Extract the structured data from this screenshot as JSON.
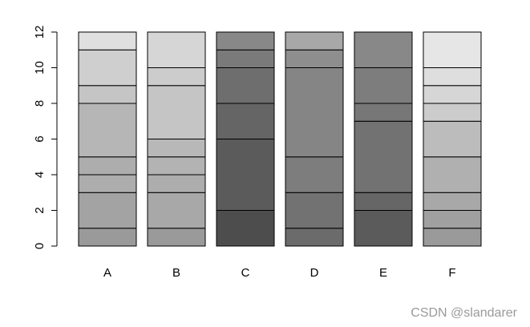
{
  "chart_data": {
    "type": "bar",
    "stacked": true,
    "categories": [
      "A",
      "B",
      "C",
      "D",
      "E",
      "F"
    ],
    "ylim": [
      0,
      12
    ],
    "yticks": [
      0,
      2,
      4,
      6,
      8,
      10,
      12
    ],
    "grid": false,
    "legend": "none",
    "title": "",
    "xlabel": "",
    "ylabel": "",
    "bars": [
      {
        "category": "A",
        "segments": [
          {
            "from": 0,
            "to": 1,
            "color": "#9a9a9a"
          },
          {
            "from": 1,
            "to": 3,
            "color": "#a3a3a3"
          },
          {
            "from": 3,
            "to": 4,
            "color": "#adadad"
          },
          {
            "from": 4,
            "to": 5,
            "color": "#adadad"
          },
          {
            "from": 5,
            "to": 8,
            "color": "#b6b6b6"
          },
          {
            "from": 8,
            "to": 9,
            "color": "#c5c5c5"
          },
          {
            "from": 9,
            "to": 11,
            "color": "#cfcfcf"
          },
          {
            "from": 11,
            "to": 12,
            "color": "#e0e0e0"
          }
        ]
      },
      {
        "category": "B",
        "segments": [
          {
            "from": 0,
            "to": 1,
            "color": "#9a9a9a"
          },
          {
            "from": 1,
            "to": 3,
            "color": "#a8a8a8"
          },
          {
            "from": 3,
            "to": 4,
            "color": "#adadad"
          },
          {
            "from": 4,
            "to": 5,
            "color": "#b3b3b3"
          },
          {
            "from": 5,
            "to": 6,
            "color": "#b8b8b8"
          },
          {
            "from": 6,
            "to": 9,
            "color": "#c5c5c5"
          },
          {
            "from": 9,
            "to": 10,
            "color": "#cccccc"
          },
          {
            "from": 10,
            "to": 12,
            "color": "#d6d6d6"
          }
        ]
      },
      {
        "category": "C",
        "segments": [
          {
            "from": 0,
            "to": 2,
            "color": "#4d4d4d"
          },
          {
            "from": 2,
            "to": 6,
            "color": "#5b5b5b"
          },
          {
            "from": 6,
            "to": 8,
            "color": "#656565"
          },
          {
            "from": 8,
            "to": 10,
            "color": "#6e6e6e"
          },
          {
            "from": 10,
            "to": 11,
            "color": "#7a7a7a"
          },
          {
            "from": 11,
            "to": 12,
            "color": "#888888"
          }
        ]
      },
      {
        "category": "D",
        "segments": [
          {
            "from": 0,
            "to": 1,
            "color": "#6b6b6b"
          },
          {
            "from": 1,
            "to": 3,
            "color": "#727272"
          },
          {
            "from": 3,
            "to": 5,
            "color": "#7d7d7d"
          },
          {
            "from": 5,
            "to": 10,
            "color": "#858585"
          },
          {
            "from": 10,
            "to": 11,
            "color": "#8e8e8e"
          },
          {
            "from": 11,
            "to": 12,
            "color": "#a8a8a8"
          }
        ]
      },
      {
        "category": "E",
        "segments": [
          {
            "from": 0,
            "to": 2,
            "color": "#5b5b5b"
          },
          {
            "from": 2,
            "to": 3,
            "color": "#666666"
          },
          {
            "from": 3,
            "to": 7,
            "color": "#727272"
          },
          {
            "from": 7,
            "to": 8,
            "color": "#777777"
          },
          {
            "from": 8,
            "to": 10,
            "color": "#7d7d7d"
          },
          {
            "from": 10,
            "to": 12,
            "color": "#888888"
          }
        ]
      },
      {
        "category": "F",
        "segments": [
          {
            "from": 0,
            "to": 1,
            "color": "#9a9a9a"
          },
          {
            "from": 1,
            "to": 2,
            "color": "#a0a0a0"
          },
          {
            "from": 2,
            "to": 3,
            "color": "#a8a8a8"
          },
          {
            "from": 3,
            "to": 5,
            "color": "#b0b0b0"
          },
          {
            "from": 5,
            "to": 7,
            "color": "#bcbcbc"
          },
          {
            "from": 7,
            "to": 8,
            "color": "#cccccc"
          },
          {
            "from": 8,
            "to": 9,
            "color": "#d6d6d6"
          },
          {
            "from": 9,
            "to": 10,
            "color": "#dedede"
          },
          {
            "from": 10,
            "to": 12,
            "color": "#e6e6e6"
          }
        ]
      }
    ]
  },
  "watermark": "CSDN @slandarer"
}
